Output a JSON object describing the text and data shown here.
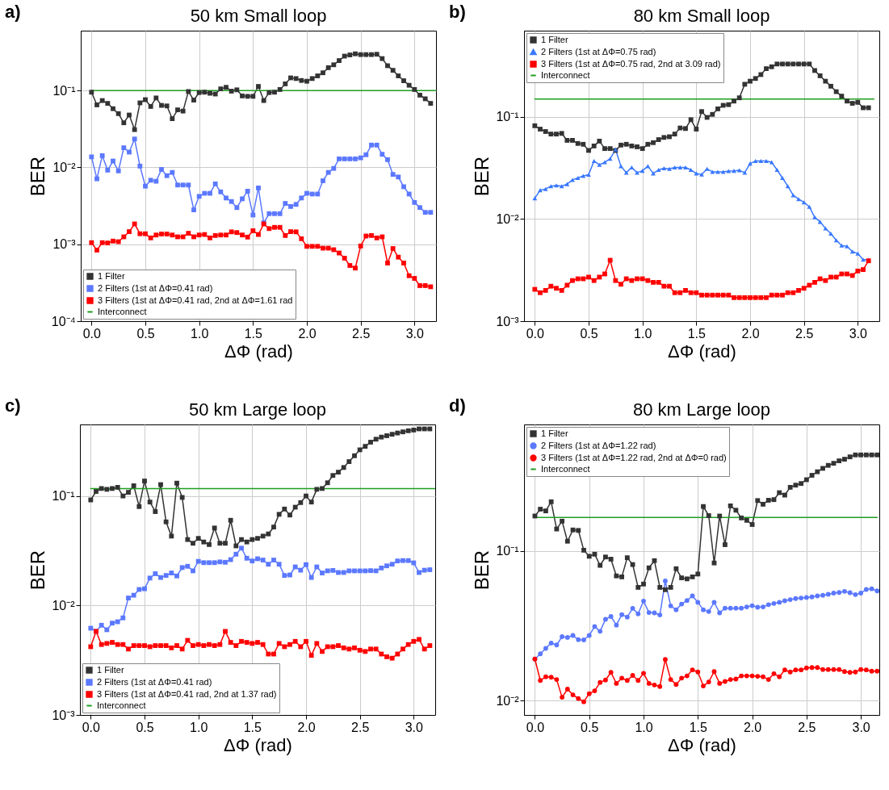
{
  "chart_data": [
    {
      "type": "line",
      "title": "50 km Small loop",
      "xlabel": "ΔΦ (rad)",
      "ylabel": "BER",
      "annotations": [
        "a)"
      ],
      "log": true,
      "grid": true,
      "legend": "bottom left",
      "xlim": [
        -0.1,
        3.2
      ],
      "xticks": [
        {
          "value": 0,
          "label": "0.0"
        },
        {
          "value": 0.5,
          "label": "0.5"
        },
        {
          "value": 1,
          "label": "1.0"
        },
        {
          "value": 1.5,
          "label": "1.5"
        },
        {
          "value": 2,
          "label": "2.0"
        },
        {
          "value": 2.5,
          "label": "2.5"
        },
        {
          "value": 3,
          "label": "3.0"
        }
      ],
      "ylim": [
        0.0001,
        0.6
      ],
      "yticks": [
        {
          "value": 0.0001,
          "label": "10⁻⁴"
        },
        {
          "value": 0.001,
          "label": "10⁻³"
        },
        {
          "value": 0.01,
          "label": "10⁻²"
        },
        {
          "value": 0.1,
          "label": "10⁻¹"
        }
      ],
      "x": [
        0,
        0.05,
        0.1,
        0.15,
        0.2,
        0.25,
        0.3,
        0.35,
        0.4,
        0.45,
        0.5,
        0.55,
        0.6,
        0.65,
        0.7,
        0.75,
        0.8,
        0.85,
        0.9,
        0.95,
        1,
        1.05,
        1.1,
        1.15,
        1.2,
        1.25,
        1.3,
        1.35,
        1.4,
        1.45,
        1.5,
        1.55,
        1.6,
        1.65,
        1.7,
        1.75,
        1.8,
        1.85,
        1.9,
        1.95,
        2,
        2.05,
        2.1,
        2.15,
        2.2,
        2.25,
        2.3,
        2.35,
        2.4,
        2.45,
        2.5,
        2.55,
        2.6,
        2.65,
        2.7,
        2.75,
        2.8,
        2.85,
        2.9,
        2.95,
        3,
        3.05,
        3.1,
        3.15
      ],
      "series": [
        {
          "name": "1 Filter",
          "color": "#333333",
          "marker": "square",
          "values": [
            0.095,
            0.065,
            0.074,
            0.068,
            0.058,
            0.05,
            0.038,
            0.048,
            0.031,
            0.069,
            0.076,
            0.062,
            0.08,
            0.064,
            0.063,
            0.043,
            0.056,
            0.054,
            0.097,
            0.075,
            0.094,
            0.095,
            0.092,
            0.09,
            0.105,
            0.11,
            0.098,
            0.102,
            0.085,
            0.084,
            0.084,
            0.113,
            0.074,
            0.094,
            0.095,
            0.103,
            0.122,
            0.146,
            0.143,
            0.135,
            0.132,
            0.143,
            0.155,
            0.17,
            0.198,
            0.216,
            0.245,
            0.28,
            0.29,
            0.3,
            0.293,
            0.293,
            0.293,
            0.296,
            0.26,
            0.21,
            0.183,
            0.155,
            0.134,
            0.117,
            0.103,
            0.087,
            0.078,
            0.068
          ]
        },
        {
          "name": "2 Filters (1st at ΔΦ=0.41 rad)",
          "color": "#5b78ff",
          "marker": "square",
          "values": [
            0.0137,
            0.0071,
            0.0142,
            0.0092,
            0.0121,
            0.009,
            0.018,
            0.0158,
            0.0234,
            0.0104,
            0.0057,
            0.0068,
            0.0066,
            0.0094,
            0.0078,
            0.0086,
            0.0059,
            0.0059,
            0.0059,
            0.0028,
            0.0042,
            0.0046,
            0.0046,
            0.0061,
            0.0048,
            0.004,
            0.0036,
            0.003,
            0.0039,
            0.0049,
            0.0024,
            0.0054,
            0.0019,
            0.0025,
            0.0025,
            0.0025,
            0.0034,
            0.0031,
            0.0033,
            0.004,
            0.0046,
            0.0045,
            0.0045,
            0.0067,
            0.0086,
            0.0097,
            0.0129,
            0.0129,
            0.0129,
            0.0129,
            0.0133,
            0.0146,
            0.0195,
            0.0195,
            0.0148,
            0.0126,
            0.0081,
            0.0075,
            0.0056,
            0.0045,
            0.0035,
            0.003,
            0.0026,
            0.0026
          ]
        },
        {
          "name": "3 Filters (1st at ΔΦ=0.41 rad, 2nd at ΔΦ=1.61 rad",
          "color": "#ff0000",
          "marker": "square",
          "values": [
            0.00105,
            0.00084,
            0.00105,
            0.00104,
            0.0011,
            0.00108,
            0.00125,
            0.00146,
            0.00184,
            0.00137,
            0.00137,
            0.00121,
            0.00132,
            0.00136,
            0.00136,
            0.00132,
            0.00125,
            0.00125,
            0.00139,
            0.00125,
            0.00132,
            0.00134,
            0.00121,
            0.0013,
            0.00132,
            0.00132,
            0.00145,
            0.00142,
            0.00132,
            0.00124,
            0.0015,
            0.00134,
            0.00184,
            0.0016,
            0.00166,
            0.00166,
            0.0013,
            0.00146,
            0.00145,
            0.00118,
            0.00094,
            0.00094,
            0.00094,
            0.00089,
            0.00089,
            0.00085,
            0.00077,
            0.00066,
            0.00053,
            0.00049,
            0.00095,
            0.00128,
            0.0013,
            0.00121,
            0.00125,
            0.00057,
            0.00088,
            0.00068,
            0.00057,
            0.00039,
            0.00036,
            0.00029,
            0.00029,
            0.00028
          ]
        },
        {
          "name": "Interconnect",
          "color": "#1f9e1f",
          "marker": "none",
          "x": [
            0,
            3.2
          ],
          "values": [
            0.1,
            0.1
          ]
        }
      ]
    },
    {
      "type": "line",
      "title": "80 km Small loop",
      "xlabel": "ΔΦ (rad)",
      "ylabel": "BER",
      "annotations": [
        "b)"
      ],
      "log": true,
      "grid": true,
      "legend": "top left",
      "xlim": [
        -0.1,
        3.2
      ],
      "xticks": [
        {
          "value": 0,
          "label": "0.0"
        },
        {
          "value": 0.5,
          "label": "0.5"
        },
        {
          "value": 1,
          "label": "1.0"
        },
        {
          "value": 1.5,
          "label": "1.5"
        },
        {
          "value": 2,
          "label": "2.0"
        },
        {
          "value": 2.5,
          "label": "2.5"
        },
        {
          "value": 3,
          "label": "3.0"
        }
      ],
      "ylim": [
        0.001,
        0.7
      ],
      "yticks": [
        {
          "value": 0.001,
          "label": "10⁻³"
        },
        {
          "value": 0.01,
          "label": "10⁻²"
        },
        {
          "value": 0.1,
          "label": "10⁻¹"
        }
      ],
      "x": [
        0,
        0.05,
        0.1,
        0.15,
        0.2,
        0.25,
        0.3,
        0.35,
        0.4,
        0.45,
        0.5,
        0.55,
        0.6,
        0.65,
        0.7,
        0.75,
        0.8,
        0.85,
        0.9,
        0.95,
        1,
        1.05,
        1.1,
        1.15,
        1.2,
        1.25,
        1.3,
        1.35,
        1.4,
        1.45,
        1.5,
        1.55,
        1.6,
        1.65,
        1.7,
        1.75,
        1.8,
        1.85,
        1.9,
        1.95,
        2,
        2.05,
        2.1,
        2.15,
        2.2,
        2.25,
        2.3,
        2.35,
        2.4,
        2.45,
        2.5,
        2.55,
        2.6,
        2.65,
        2.7,
        2.75,
        2.8,
        2.85,
        2.9,
        2.95,
        3,
        3.05,
        3.1
      ],
      "series": [
        {
          "name": "1 Filter",
          "color": "#333333",
          "marker": "square",
          "values": [
            0.082,
            0.076,
            0.072,
            0.068,
            0.068,
            0.069,
            0.059,
            0.059,
            0.055,
            0.054,
            0.047,
            0.052,
            0.058,
            0.049,
            0.049,
            0.047,
            0.053,
            0.054,
            0.052,
            0.051,
            0.049,
            0.054,
            0.056,
            0.06,
            0.063,
            0.064,
            0.068,
            0.078,
            0.077,
            0.094,
            0.076,
            0.113,
            0.099,
            0.106,
            0.12,
            0.13,
            0.132,
            0.143,
            0.154,
            0.209,
            0.224,
            0.238,
            0.26,
            0.297,
            0.31,
            0.33,
            0.33,
            0.33,
            0.33,
            0.33,
            0.33,
            0.33,
            0.285,
            0.253,
            0.224,
            0.2,
            0.177,
            0.16,
            0.143,
            0.136,
            0.139,
            0.123,
            0.123
          ]
        },
        {
          "name": "2 Filters (1st at ΔΦ=0.75 rad)",
          "color": "#3a78ff",
          "marker": "triangle",
          "values": [
            0.016,
            0.0192,
            0.0197,
            0.021,
            0.0214,
            0.021,
            0.022,
            0.0242,
            0.0253,
            0.0265,
            0.0272,
            0.037,
            0.034,
            0.036,
            0.039,
            0.048,
            0.033,
            0.0285,
            0.032,
            0.0285,
            0.0297,
            0.033,
            0.028,
            0.0303,
            0.0315,
            0.031,
            0.032,
            0.032,
            0.032,
            0.0303,
            0.028,
            0.0273,
            0.031,
            0.029,
            0.029,
            0.029,
            0.0295,
            0.0297,
            0.03,
            0.0285,
            0.035,
            0.037,
            0.037,
            0.037,
            0.036,
            0.0303,
            0.0253,
            0.021,
            0.0171,
            0.0157,
            0.0146,
            0.0132,
            0.0104,
            0.0094,
            0.0081,
            0.0072,
            0.0062,
            0.0055,
            0.0054,
            0.0048,
            0.0046,
            0.004,
            0.004
          ]
        },
        {
          "name": "3 Filters (1st at ΔΦ=0.75 rad, 2nd at 3.09 rad)",
          "color": "#ff0000",
          "marker": "square",
          "values": [
            0.00205,
            0.0019,
            0.002,
            0.0022,
            0.0021,
            0.002,
            0.00225,
            0.0025,
            0.0026,
            0.0026,
            0.0027,
            0.0025,
            0.0027,
            0.0029,
            0.00395,
            0.0025,
            0.0023,
            0.0026,
            0.0025,
            0.0026,
            0.0026,
            0.0025,
            0.0024,
            0.0024,
            0.0022,
            0.0022,
            0.0019,
            0.0019,
            0.002,
            0.0019,
            0.0019,
            0.0018,
            0.0018,
            0.0018,
            0.0018,
            0.0018,
            0.0018,
            0.0017,
            0.0017,
            0.0017,
            0.0017,
            0.0017,
            0.0017,
            0.0017,
            0.0018,
            0.0018,
            0.0018,
            0.0019,
            0.0019,
            0.002,
            0.0021,
            0.00225,
            0.0024,
            0.0026,
            0.0025,
            0.0027,
            0.0027,
            0.0029,
            0.0029,
            0.0028,
            0.0031,
            0.0032,
            0.0039
          ]
        },
        {
          "name": "Interconnect",
          "color": "#1f9e1f",
          "marker": "none",
          "x": [
            0,
            3.15
          ],
          "values": [
            0.15,
            0.15
          ]
        }
      ]
    },
    {
      "type": "line",
      "title": "50 km Large loop",
      "xlabel": "ΔΦ (rad)",
      "ylabel": "BER",
      "annotations": [
        "c)"
      ],
      "log": true,
      "grid": true,
      "legend": "bottom left",
      "xlim": [
        -0.1,
        3.2
      ],
      "xticks": [
        {
          "value": 0,
          "label": "0.0"
        },
        {
          "value": 0.5,
          "label": "0.5"
        },
        {
          "value": 1,
          "label": "1.0"
        },
        {
          "value": 1.5,
          "label": "1.5"
        },
        {
          "value": 2,
          "label": "2.0"
        },
        {
          "value": 2.5,
          "label": "2.5"
        },
        {
          "value": 3,
          "label": "3.0"
        }
      ],
      "ylim": [
        0.001,
        0.45
      ],
      "yticks": [
        {
          "value": 0.001,
          "label": "10⁻³"
        },
        {
          "value": 0.01,
          "label": "10⁻²"
        },
        {
          "value": 0.1,
          "label": "10⁻¹"
        }
      ],
      "x": [
        0,
        0.05,
        0.1,
        0.15,
        0.2,
        0.25,
        0.3,
        0.35,
        0.4,
        0.45,
        0.5,
        0.55,
        0.6,
        0.65,
        0.7,
        0.75,
        0.8,
        0.85,
        0.9,
        0.95,
        1,
        1.05,
        1.1,
        1.15,
        1.2,
        1.25,
        1.3,
        1.35,
        1.4,
        1.45,
        1.5,
        1.55,
        1.6,
        1.65,
        1.7,
        1.75,
        1.8,
        1.85,
        1.9,
        1.95,
        2,
        2.05,
        2.1,
        2.15,
        2.2,
        2.25,
        2.3,
        2.35,
        2.4,
        2.45,
        2.5,
        2.55,
        2.6,
        2.65,
        2.7,
        2.75,
        2.8,
        2.85,
        2.9,
        2.95,
        3,
        3.05,
        3.1,
        3.15
      ],
      "series": [
        {
          "name": "1 Filter",
          "color": "#333333",
          "marker": "square",
          "values": [
            0.092,
            0.11,
            0.117,
            0.115,
            0.117,
            0.12,
            0.1,
            0.108,
            0.124,
            0.08,
            0.137,
            0.088,
            0.072,
            0.127,
            0.058,
            0.043,
            0.131,
            0.097,
            0.04,
            0.037,
            0.041,
            0.038,
            0.036,
            0.051,
            0.037,
            0.037,
            0.06,
            0.035,
            0.04,
            0.038,
            0.04,
            0.041,
            0.043,
            0.045,
            0.052,
            0.068,
            0.076,
            0.067,
            0.079,
            0.087,
            0.1,
            0.088,
            0.115,
            0.117,
            0.132,
            0.154,
            0.165,
            0.182,
            0.206,
            0.233,
            0.264,
            0.284,
            0.31,
            0.33,
            0.345,
            0.355,
            0.366,
            0.376,
            0.385,
            0.394,
            0.4,
            0.41,
            0.41,
            0.41
          ]
        },
        {
          "name": "2 Filters (1st at ΔΦ=0.41 rad)",
          "color": "#5b78ff",
          "marker": "square",
          "values": [
            0.0062,
            0.0058,
            0.0066,
            0.006,
            0.0069,
            0.0071,
            0.0077,
            0.0117,
            0.0124,
            0.014,
            0.0142,
            0.0178,
            0.0195,
            0.018,
            0.0188,
            0.0198,
            0.0186,
            0.0222,
            0.0228,
            0.0207,
            0.0253,
            0.0246,
            0.0246,
            0.0246,
            0.025,
            0.0248,
            0.0262,
            0.0294,
            0.0334,
            0.027,
            0.0255,
            0.0267,
            0.026,
            0.0238,
            0.026,
            0.0238,
            0.0188,
            0.019,
            0.0225,
            0.021,
            0.0236,
            0.018,
            0.0225,
            0.0198,
            0.0207,
            0.0209,
            0.02,
            0.02,
            0.0207,
            0.0207,
            0.0207,
            0.0207,
            0.0208,
            0.0207,
            0.022,
            0.023,
            0.0238,
            0.0255,
            0.0257,
            0.0257,
            0.0245,
            0.02,
            0.021,
            0.0212
          ]
        },
        {
          "name": "3 Filters (1st at ΔΦ=0.41 rad, 2nd at 1.37 rad)",
          "color": "#ff0000",
          "marker": "square",
          "values": [
            0.0042,
            0.0058,
            0.0044,
            0.0045,
            0.0046,
            0.0044,
            0.0044,
            0.004,
            0.0043,
            0.0043,
            0.0043,
            0.0042,
            0.0043,
            0.0043,
            0.0043,
            0.0041,
            0.0043,
            0.004,
            0.0048,
            0.0043,
            0.0044,
            0.0043,
            0.0044,
            0.0043,
            0.0044,
            0.0058,
            0.0046,
            0.0043,
            0.0047,
            0.0046,
            0.0045,
            0.0046,
            0.0044,
            0.0036,
            0.0036,
            0.0045,
            0.0042,
            0.0044,
            0.0047,
            0.0042,
            0.0047,
            0.0035,
            0.0045,
            0.0038,
            0.0042,
            0.0042,
            0.0043,
            0.0041,
            0.004,
            0.0041,
            0.0039,
            0.0038,
            0.004,
            0.004,
            0.0036,
            0.0034,
            0.0033,
            0.0036,
            0.004,
            0.0044,
            0.0047,
            0.0049,
            0.004,
            0.0043
          ]
        },
        {
          "name": "Interconnect",
          "color": "#1f9e1f",
          "marker": "none",
          "x": [
            0,
            3.2
          ],
          "values": [
            0.117,
            0.117
          ]
        }
      ]
    },
    {
      "type": "line",
      "title": "80 km Large loop",
      "xlabel": "ΔΦ (rad)",
      "ylabel": "BER",
      "annotations": [
        "d)"
      ],
      "log": true,
      "grid": true,
      "legend": "top left",
      "xlim": [
        -0.1,
        3.17
      ],
      "xticks": [
        {
          "value": 0,
          "label": "0.0"
        },
        {
          "value": 0.5,
          "label": "0.5"
        },
        {
          "value": 1,
          "label": "1.0"
        },
        {
          "value": 1.5,
          "label": "1.5"
        },
        {
          "value": 2,
          "label": "2.0"
        },
        {
          "value": 2.5,
          "label": "2.5"
        },
        {
          "value": 3,
          "label": "3.0"
        }
      ],
      "ylim": [
        0.008,
        0.7
      ],
      "yticks": [
        {
          "value": 0.01,
          "label": "10⁻²"
        },
        {
          "value": 0.1,
          "label": "10⁻¹"
        }
      ],
      "x": [
        0,
        0.05,
        0.1,
        0.15,
        0.2,
        0.25,
        0.3,
        0.35,
        0.4,
        0.45,
        0.5,
        0.55,
        0.6,
        0.65,
        0.7,
        0.75,
        0.8,
        0.85,
        0.9,
        0.95,
        1,
        1.05,
        1.1,
        1.15,
        1.2,
        1.25,
        1.3,
        1.35,
        1.4,
        1.45,
        1.5,
        1.55,
        1.6,
        1.65,
        1.7,
        1.75,
        1.8,
        1.85,
        1.9,
        1.95,
        2,
        2.05,
        2.1,
        2.15,
        2.2,
        2.25,
        2.3,
        2.35,
        2.4,
        2.45,
        2.5,
        2.55,
        2.6,
        2.65,
        2.7,
        2.75,
        2.8,
        2.85,
        2.9,
        2.95,
        3,
        3.05,
        3.1,
        3.15
      ],
      "series": [
        {
          "name": "1 Filter",
          "color": "#333333",
          "marker": "square",
          "values": [
            0.171,
            0.19,
            0.185,
            0.213,
            0.14,
            0.158,
            0.116,
            0.138,
            0.137,
            0.101,
            0.092,
            0.095,
            0.08,
            0.091,
            0.088,
            0.068,
            0.067,
            0.09,
            0.081,
            0.057,
            0.06,
            0.077,
            0.086,
            0.057,
            0.055,
            0.057,
            0.076,
            0.066,
            0.065,
            0.067,
            0.07,
            0.198,
            0.172,
            0.083,
            0.171,
            0.11,
            0.2,
            0.187,
            0.166,
            0.16,
            0.15,
            0.217,
            0.205,
            0.218,
            0.22,
            0.245,
            0.236,
            0.266,
            0.275,
            0.282,
            0.299,
            0.32,
            0.338,
            0.356,
            0.373,
            0.385,
            0.4,
            0.41,
            0.425,
            0.438,
            0.438,
            0.438,
            0.438,
            0.438
          ]
        },
        {
          "name": "2 Filters (1st at ΔΦ=1.22 rad)",
          "color": "#5b78ff",
          "marker": "circle",
          "values": [
            0.0189,
            0.0205,
            0.0223,
            0.0242,
            0.0235,
            0.0267,
            0.0264,
            0.0272,
            0.0255,
            0.0254,
            0.0272,
            0.0312,
            0.029,
            0.0349,
            0.0364,
            0.0319,
            0.0375,
            0.0361,
            0.0413,
            0.0379,
            0.0462,
            0.0387,
            0.0385,
            0.0373,
            0.0629,
            0.0429,
            0.0404,
            0.0441,
            0.0466,
            0.05,
            0.0453,
            0.0404,
            0.0393,
            0.0453,
            0.0385,
            0.0414,
            0.0414,
            0.0414,
            0.0414,
            0.0422,
            0.043,
            0.042,
            0.0422,
            0.0437,
            0.0445,
            0.0453,
            0.0464,
            0.0472,
            0.048,
            0.0484,
            0.0488,
            0.0492,
            0.05,
            0.0505,
            0.0513,
            0.0522,
            0.0527,
            0.0536,
            0.0525,
            0.051,
            0.0522,
            0.0552,
            0.0558,
            0.054
          ]
        },
        {
          "name": "3 Filters (1st at ΔΦ=1.22 rad, 2nd at ΔΦ=0 rad)",
          "color": "#ff0000",
          "marker": "circle",
          "values": [
            0.0189,
            0.0136,
            0.0144,
            0.0143,
            0.0138,
            0.0105,
            0.0119,
            0.0109,
            0.0103,
            0.0098,
            0.0111,
            0.0116,
            0.0132,
            0.0137,
            0.0154,
            0.013,
            0.0141,
            0.0136,
            0.0147,
            0.0136,
            0.0152,
            0.013,
            0.0127,
            0.0124,
            0.0188,
            0.0138,
            0.0128,
            0.0141,
            0.0146,
            0.016,
            0.0155,
            0.0125,
            0.0133,
            0.0156,
            0.013,
            0.0134,
            0.0138,
            0.0139,
            0.0146,
            0.0146,
            0.0146,
            0.0145,
            0.0144,
            0.0138,
            0.0151,
            0.0144,
            0.016,
            0.0155,
            0.016,
            0.016,
            0.0165,
            0.0166,
            0.0166,
            0.0161,
            0.0161,
            0.0161,
            0.0161,
            0.0156,
            0.0154,
            0.0155,
            0.0161,
            0.016,
            0.0157,
            0.0157
          ]
        },
        {
          "name": "Interconnect",
          "color": "#1f9e1f",
          "marker": "none",
          "x": [
            0,
            3.15
          ],
          "values": [
            0.167,
            0.167
          ]
        }
      ]
    }
  ]
}
